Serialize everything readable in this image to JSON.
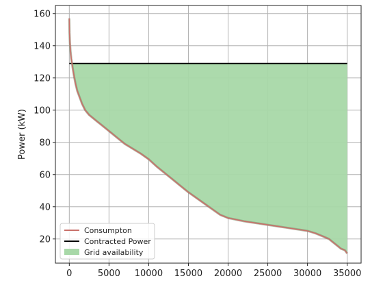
{
  "chart_data": {
    "type": "area",
    "title": "",
    "xlabel": "",
    "ylabel": "Power (kW)",
    "xlim": [
      -1750,
      36750
    ],
    "ylim": [
      5,
      165
    ],
    "xticks": [
      0,
      5000,
      10000,
      15000,
      20000,
      25000,
      30000,
      35000
    ],
    "yticks": [
      20,
      40,
      60,
      80,
      100,
      120,
      140,
      160
    ],
    "grid": true,
    "legend_position": "lower-left",
    "contracted_power": 129,
    "series": [
      {
        "name": "Consumpton",
        "kind": "line",
        "color": "#c9706a",
        "x": [
          0,
          30,
          80,
          150,
          250,
          400,
          600,
          800,
          1000,
          1300,
          1600,
          2000,
          2500,
          3000,
          3500,
          4000,
          5000,
          6000,
          7000,
          8000,
          9000,
          10000,
          11000,
          12000,
          13000,
          14000,
          15000,
          16000,
          17000,
          18000,
          19000,
          20000,
          22000,
          24000,
          26000,
          28000,
          30000,
          31000,
          32000,
          32700,
          33200,
          33700,
          34200,
          34700,
          35000
        ],
        "y": [
          157,
          148,
          142,
          137,
          132,
          127,
          121,
          116,
          112,
          108,
          104,
          100,
          97,
          95,
          93,
          91,
          87,
          83,
          79,
          76,
          73,
          69.5,
          65,
          61,
          57,
          53,
          49,
          45.5,
          42,
          38.5,
          35,
          33,
          31,
          29.5,
          28,
          26.5,
          25,
          23.5,
          21.5,
          20,
          18,
          16,
          14,
          13,
          11
        ]
      },
      {
        "name": "Contracted Power",
        "kind": "hline",
        "color": "#000000",
        "x": [
          0,
          35000
        ],
        "y": [
          129,
          129
        ]
      },
      {
        "name": "Grid availability",
        "kind": "fill_between",
        "color": "#a8d8a8",
        "between": [
          "Contracted Power",
          "Consumpton"
        ]
      }
    ]
  }
}
